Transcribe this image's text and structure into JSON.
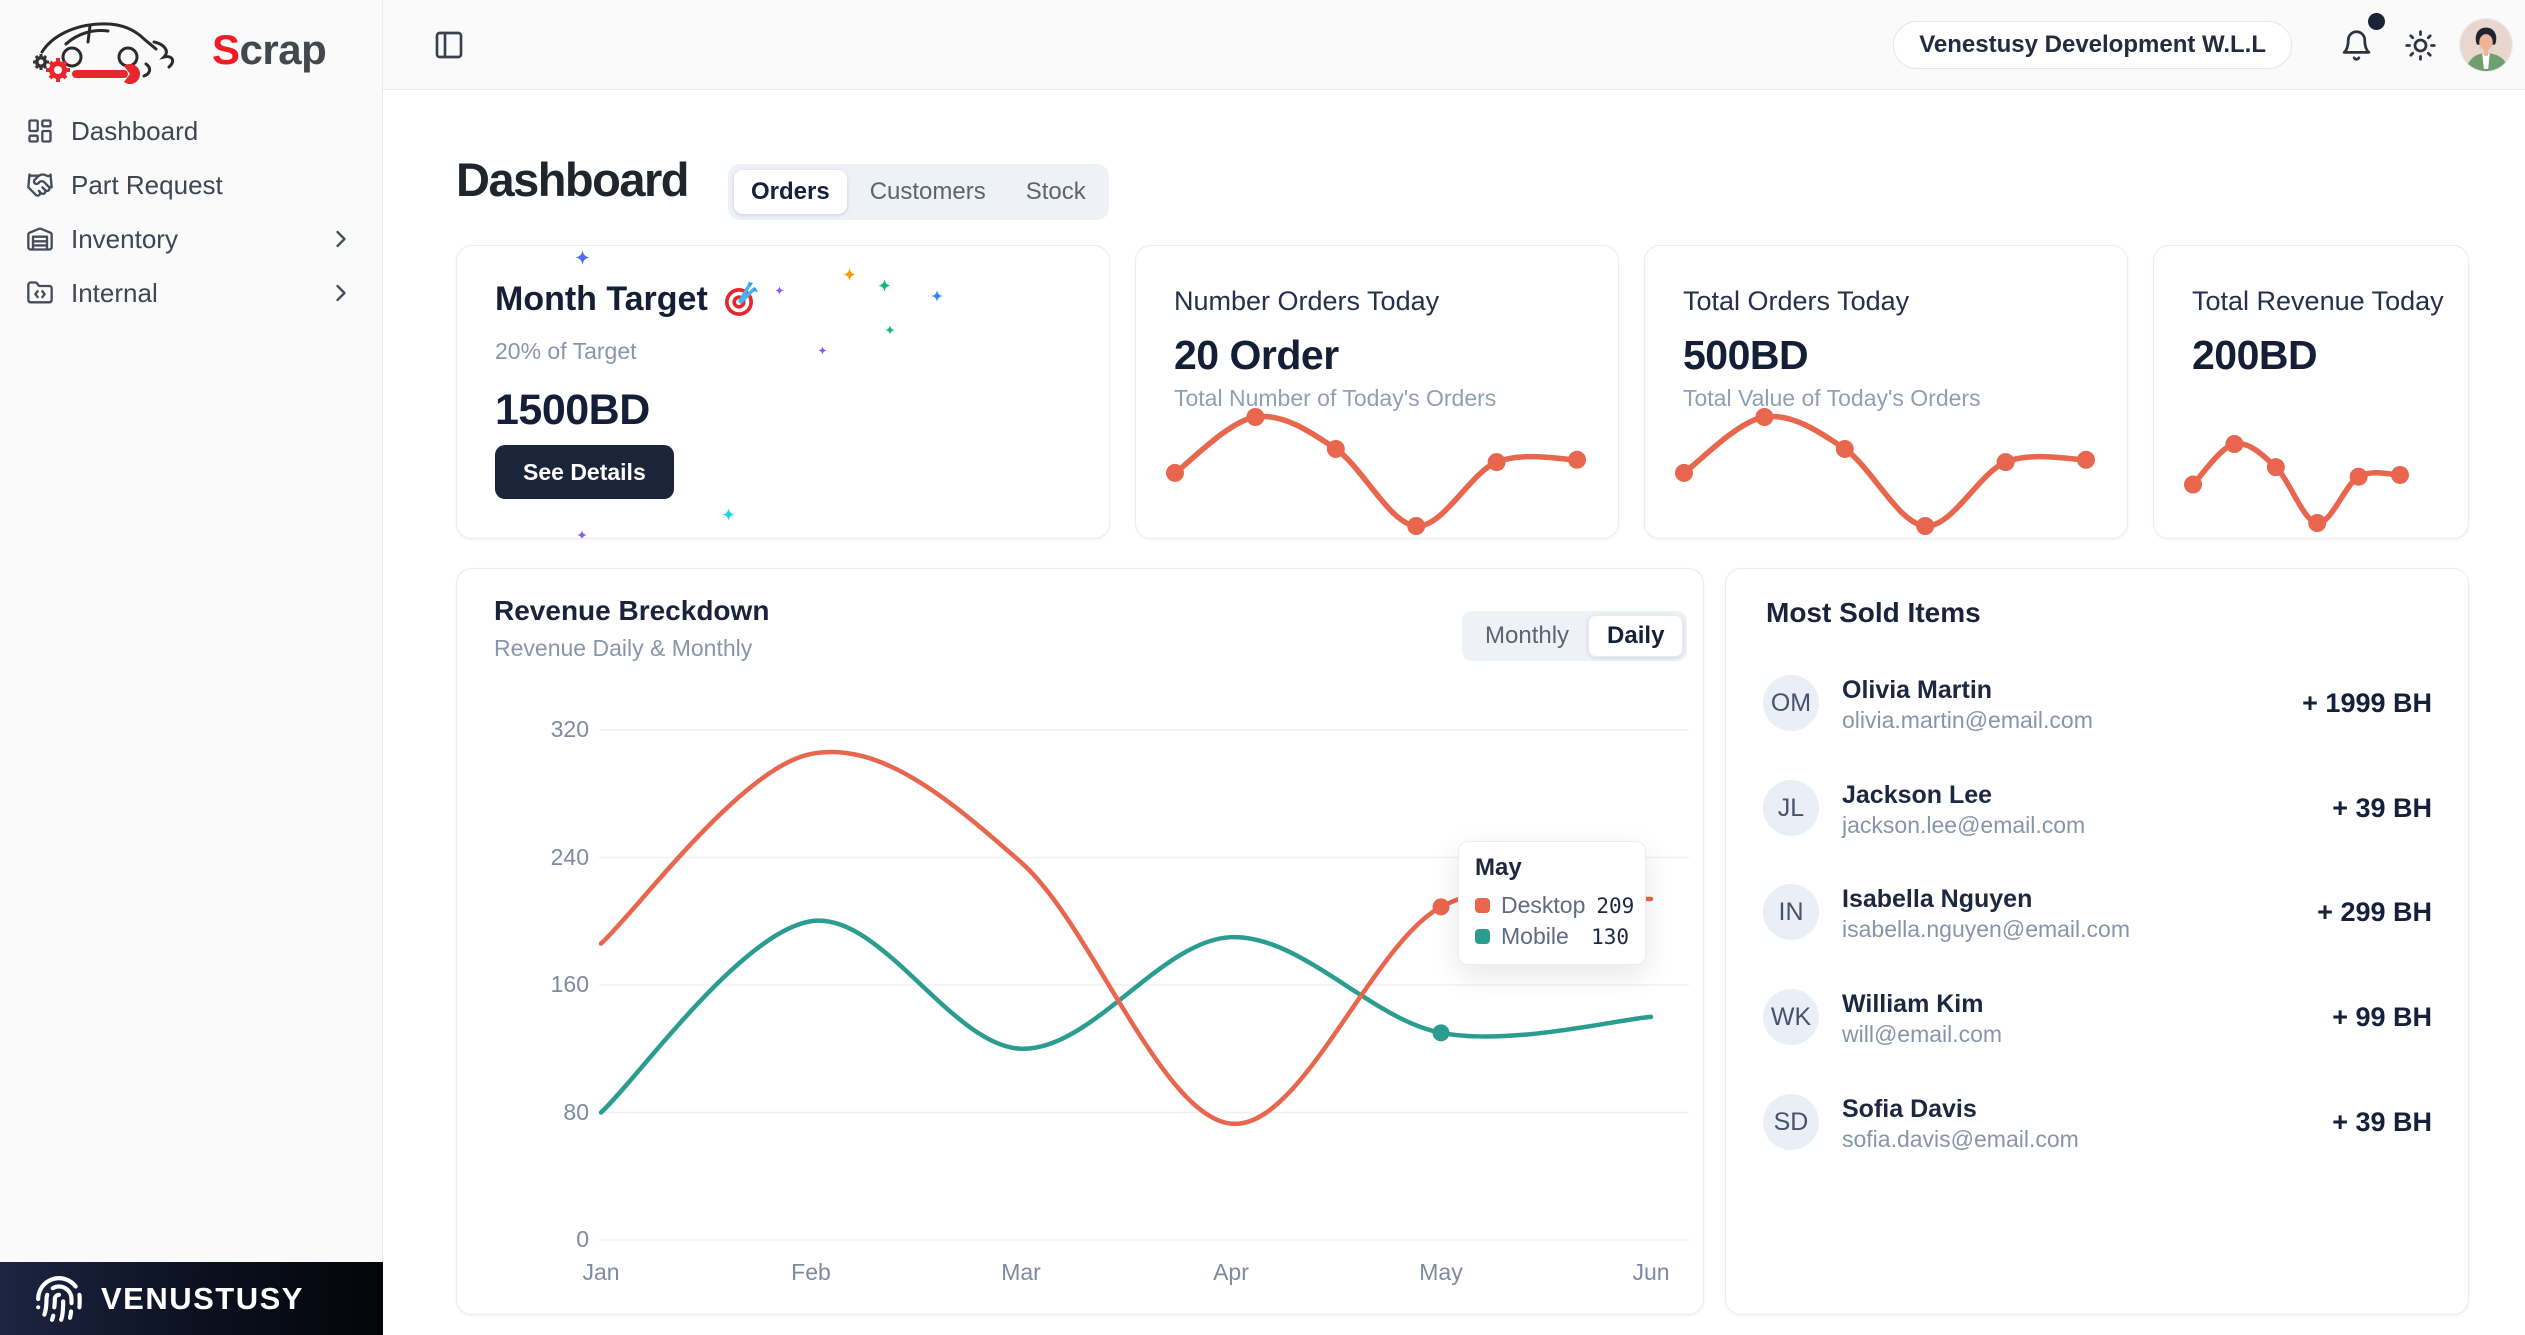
{
  "colors": {
    "accent_orange": "#e8664d",
    "accent_teal": "#2a9d90",
    "brand_red": "#ee1c25",
    "dark_navy": "#15203a"
  },
  "brand": {
    "accent_letter": "S",
    "rest": "crap"
  },
  "sidebar": {
    "items": [
      {
        "label": "Dashboard",
        "icon": "dashboard-icon",
        "expandable": false
      },
      {
        "label": "Part Request",
        "icon": "handshake-icon",
        "expandable": false
      },
      {
        "label": "Inventory",
        "icon": "warehouse-icon",
        "expandable": true
      },
      {
        "label": "Internal",
        "icon": "folder-code-icon",
        "expandable": true
      }
    ],
    "footer_brand": "VENUSTUSY"
  },
  "topbar": {
    "company": "Venestusy Development W.L.L",
    "notification_dot": true
  },
  "page": {
    "title": "Dashboard",
    "tabs": [
      {
        "label": "Orders",
        "active": true
      },
      {
        "label": "Customers",
        "active": false
      },
      {
        "label": "Stock",
        "active": false
      }
    ]
  },
  "cards": {
    "month_target": {
      "title": "Month Target",
      "icon": "target-icon",
      "subtitle": "20% of Target",
      "value": "1500BD",
      "button_label": "See Details"
    },
    "number_orders": {
      "title": "Number Orders Today",
      "value": "20 Order",
      "subtitle": "Total Number of Today's Orders"
    },
    "total_orders": {
      "title": "Total Orders Today",
      "value": "500BD",
      "subtitle": "Total Value of Today's Orders"
    },
    "total_revenue": {
      "title": "Total Revenue Today",
      "value": "200BD"
    }
  },
  "revenue_section": {
    "title": "Revenue Breckdown",
    "subtitle": "Revenue Daily & Monthly",
    "toggle": [
      {
        "label": "Monthly",
        "active": false
      },
      {
        "label": "Daily",
        "active": true
      }
    ]
  },
  "most_sold": {
    "title": "Most Sold Items",
    "items": [
      {
        "initials": "OM",
        "name": "Olivia Martin",
        "email": "olivia.martin@email.com",
        "amount": "+ 1999 BH"
      },
      {
        "initials": "JL",
        "name": "Jackson Lee",
        "email": "jackson.lee@email.com",
        "amount": "+ 39 BH"
      },
      {
        "initials": "IN",
        "name": "Isabella Nguyen",
        "email": "isabella.nguyen@email.com",
        "amount": "+ 299 BH"
      },
      {
        "initials": "WK",
        "name": "William Kim",
        "email": "will@email.com",
        "amount": "+ 99 BH"
      },
      {
        "initials": "SD",
        "name": "Sofia Davis",
        "email": "sofia.davis@email.com",
        "amount": "+ 39 BH"
      }
    ]
  },
  "chart_data": [
    {
      "id": "revenue-breakdown",
      "type": "line",
      "title": "Revenue Breckdown",
      "x": [
        "Jan",
        "Feb",
        "Mar",
        "Apr",
        "May",
        "Jun"
      ],
      "series": [
        {
          "name": "Desktop",
          "color": "#e8664d",
          "values": [
            186,
            305,
            237,
            73,
            209,
            214
          ]
        },
        {
          "name": "Mobile",
          "color": "#2a9d90",
          "values": [
            80,
            200,
            120,
            190,
            130,
            140
          ]
        }
      ],
      "ylim": [
        0,
        320
      ],
      "yticks": [
        0,
        80,
        160,
        240,
        320
      ],
      "grid": "horizontal",
      "legend": "tooltip-only",
      "tooltip": {
        "label": "May",
        "rows": [
          {
            "name": "Desktop",
            "value": 209
          },
          {
            "name": "Mobile",
            "value": 130
          }
        ]
      }
    },
    {
      "id": "stat-card-sparkline",
      "type": "line",
      "x": [
        1,
        2,
        3,
        4,
        5,
        6
      ],
      "series": [
        {
          "name": "trend",
          "color": "#e8664d",
          "values": [
            186,
            305,
            237,
            73,
            209,
            214
          ]
        }
      ]
    }
  ]
}
